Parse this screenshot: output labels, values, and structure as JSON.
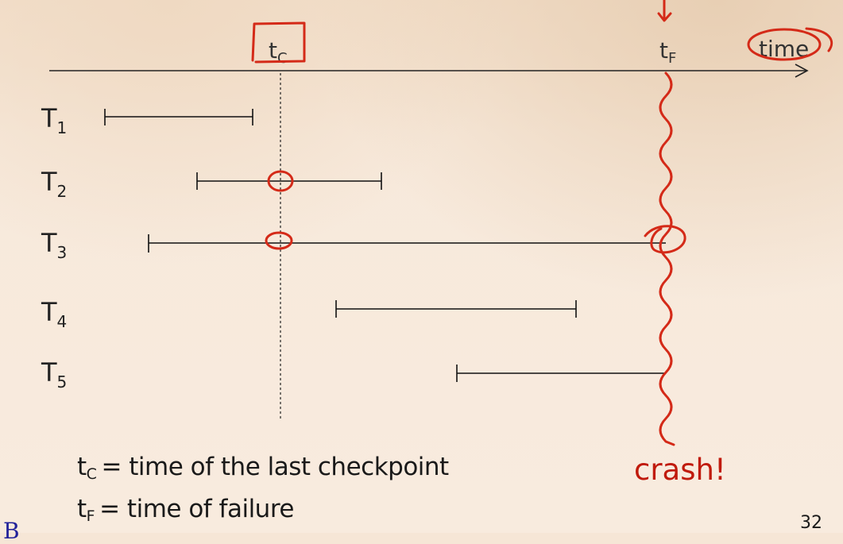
{
  "axis": {
    "label": "time",
    "checkpoint_marker": {
      "symbol": "t",
      "subscript": "C"
    },
    "failure_marker": {
      "symbol": "t",
      "subscript": "F"
    }
  },
  "transactions": [
    {
      "name": "T",
      "subscript": "1"
    },
    {
      "name": "T",
      "subscript": "2"
    },
    {
      "name": "T",
      "subscript": "3"
    },
    {
      "name": "T",
      "subscript": "4"
    },
    {
      "name": "T",
      "subscript": "5"
    }
  ],
  "legend": {
    "checkpoint": {
      "symbol": "t",
      "subscript": "C",
      "text": "= time of the last checkpoint"
    },
    "failure": {
      "symbol": "t",
      "subscript": "F",
      "text": "= time of failure"
    }
  },
  "annotation": {
    "crash_label": "crash!",
    "ink_color": "#d42a18"
  },
  "page_number": "32",
  "corner_glyph": "B"
}
